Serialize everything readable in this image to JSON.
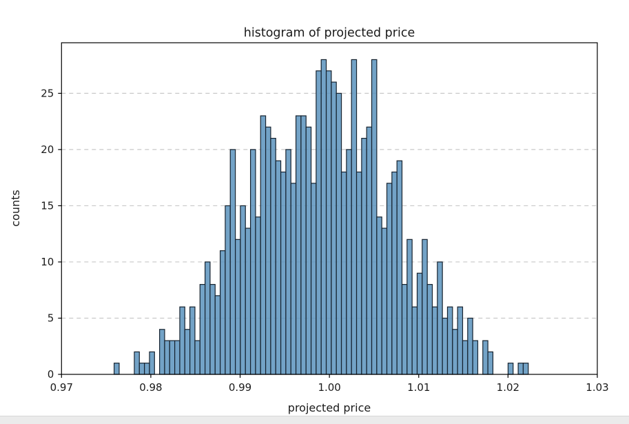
{
  "window": {
    "background": "#ffffff",
    "bottom_strip_color": "#ebebeb"
  },
  "chart_data": {
    "type": "bar",
    "subtype": "histogram",
    "title": "histogram of projected price",
    "xlabel": "projected price",
    "ylabel": "counts",
    "xlim": [
      0.97,
      1.03
    ],
    "ylim": [
      0,
      29.5
    ],
    "x_ticks": [
      0.97,
      0.98,
      0.99,
      1.0,
      1.01,
      1.02,
      1.03
    ],
    "x_tick_labels": [
      "0.97",
      "0.98",
      "0.99",
      "1.00",
      "1.01",
      "1.02",
      "1.03"
    ],
    "y_ticks": [
      0,
      5,
      10,
      15,
      20,
      25
    ],
    "y_tick_labels": [
      "0",
      "5",
      "10",
      "15",
      "20",
      "25"
    ],
    "grid": "horizontal, dashed, behind bars",
    "legend": "none",
    "bin_start": 0.97589,
    "bin_width": 0.0005656,
    "n_bins": 82,
    "counts": [
      1,
      0,
      0,
      0,
      2,
      1,
      1,
      2,
      0,
      4,
      3,
      3,
      3,
      6,
      4,
      6,
      3,
      8,
      10,
      8,
      7,
      11,
      15,
      20,
      12,
      15,
      13,
      20,
      14,
      23,
      22,
      21,
      19,
      18,
      20,
      17,
      23,
      23,
      22,
      17,
      27,
      28,
      27,
      26,
      25,
      18,
      20,
      28,
      18,
      21,
      22,
      28,
      14,
      13,
      17,
      18,
      19,
      8,
      12,
      6,
      9,
      12,
      8,
      6,
      10,
      5,
      6,
      4,
      6,
      3,
      5,
      3,
      0,
      3,
      2,
      0,
      0,
      0,
      1,
      0,
      1,
      1
    ],
    "total_samples": 897,
    "max_count": 28,
    "bar_fill_color": "#5b93bd",
    "bar_fill_opacity": 0.85,
    "bar_edge_color": "#16222e",
    "gridline_color": "#c8c8c8",
    "spine_color": "#000000"
  }
}
